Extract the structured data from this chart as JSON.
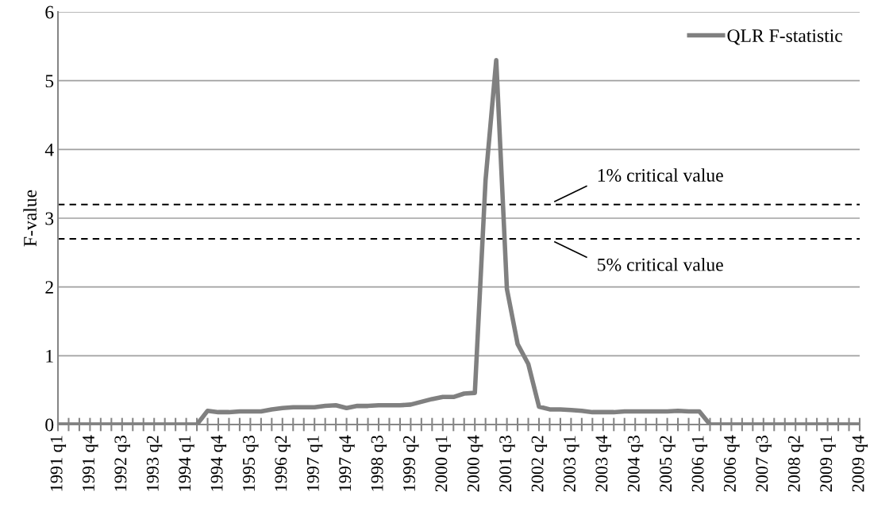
{
  "chart_data": {
    "type": "line",
    "ylabel": "F-value",
    "categories": [
      "1991 q1",
      null,
      null,
      "1991 q4",
      null,
      null,
      "1992 q3",
      null,
      null,
      "1993 q2",
      null,
      null,
      "1994 q1",
      null,
      null,
      "1994 q4",
      null,
      null,
      "1995 q3",
      null,
      null,
      "1996 q2",
      null,
      null,
      "1997 q1",
      null,
      null,
      "1997 q4",
      null,
      null,
      "1998 q3",
      null,
      null,
      "1999 q2",
      null,
      null,
      "2000 q1",
      null,
      null,
      "2000 q4",
      null,
      null,
      "2001 q3",
      null,
      null,
      "2002 q2",
      null,
      null,
      "2003 q1",
      null,
      null,
      "2003 q4",
      null,
      null,
      "2004 q3",
      null,
      null,
      "2005 q2",
      null,
      null,
      "2006 q1",
      null,
      null,
      "2006 q4",
      null,
      null,
      "2007 q3",
      null,
      null,
      "2008 q2",
      null,
      null,
      "2009 q1",
      null,
      null,
      "2009 q4"
    ],
    "series": [
      {
        "name": "QLR F-statistic",
        "color": "#808080",
        "values": [
          0,
          0,
          0,
          0,
          0,
          0,
          0,
          0,
          0,
          0,
          0,
          0,
          0,
          0,
          0.2,
          0.18,
          0.18,
          0.19,
          0.19,
          0.19,
          0.22,
          0.24,
          0.25,
          0.25,
          0.25,
          0.27,
          0.28,
          0.24,
          0.27,
          0.27,
          0.28,
          0.28,
          0.28,
          0.29,
          0.33,
          0.37,
          0.4,
          0.4,
          0.45,
          0.46,
          3.55,
          5.3,
          1.97,
          1.17,
          0.88,
          0.26,
          0.22,
          0.22,
          0.21,
          0.2,
          0.18,
          0.18,
          0.18,
          0.19,
          0.19,
          0.19,
          0.19,
          0.19,
          0.2,
          0.19,
          0.19,
          0,
          0,
          0,
          0,
          0,
          0,
          0,
          0,
          0,
          0,
          0,
          0,
          0,
          0,
          0
        ]
      }
    ],
    "ylim": [
      0,
      6
    ],
    "yticks": [
      0,
      1,
      2,
      3,
      4,
      5,
      6
    ],
    "grid": "y",
    "legend": "top right",
    "marker": "none",
    "line_style": "solid",
    "ref_lines": [
      {
        "axis": "y",
        "value": 3.2,
        "label": "1% critical value",
        "color": "#000000",
        "line_style": "dashed"
      },
      {
        "axis": "y",
        "value": 2.7,
        "label": "5% critical value",
        "color": "#000000",
        "line_style": "dashed"
      }
    ]
  }
}
